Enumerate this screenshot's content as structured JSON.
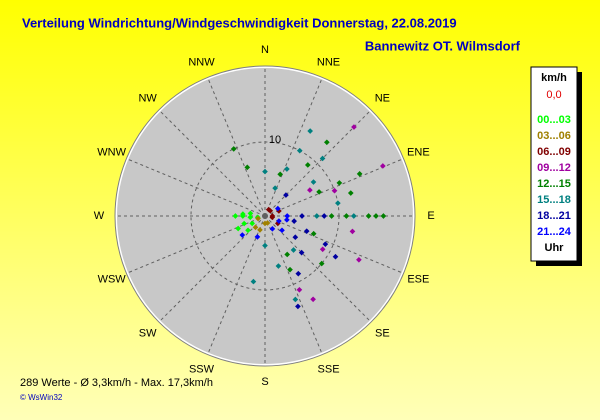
{
  "chart_data": {
    "type": "polar-scatter",
    "title": "Verteilung Windrichtung/Windgeschwindigkeit  Donnerstag, 22.08.2019",
    "subtitle": "Bannewitz OT. Wilmsdorf",
    "directions": [
      "N",
      "NNE",
      "NE",
      "ENE",
      "E",
      "ESE",
      "SE",
      "SSE",
      "S",
      "SSW",
      "SW",
      "WSW",
      "W",
      "WNW",
      "NW",
      "NNW"
    ],
    "rlim": [
      0,
      20
    ],
    "rticks": [
      10
    ],
    "legend_title": "km/h",
    "legend_calm": "0,0",
    "legend_unit": "Uhr",
    "series": [
      {
        "name": "00...03",
        "color": "#00ff00",
        "direction": [
          270,
          270,
          265,
          275,
          250,
          240,
          245,
          280,
          260,
          230
        ],
        "speed": [
          3,
          4,
          2,
          3,
          3,
          2,
          4,
          2,
          1,
          3
        ]
      },
      {
        "name": "03...06",
        "color": "#a08000",
        "direction": [
          250,
          200,
          180,
          220,
          160
        ],
        "speed": [
          1,
          2,
          1,
          2,
          1
        ]
      },
      {
        "name": "06...09",
        "color": "#800000",
        "direction": [
          100,
          120,
          90,
          70,
          45,
          30
        ],
        "speed": [
          1,
          2,
          1,
          2,
          1,
          1
        ]
      },
      {
        "name": "09...12",
        "color": "#a000a0",
        "direction": [
          45,
          67,
          115,
          70,
          100,
          60,
          120,
          150,
          155
        ],
        "speed": [
          17,
          17.3,
          14,
          10,
          12,
          7,
          9,
          13,
          11
        ]
      },
      {
        "name": "12...15",
        "color": "#008000",
        "direction": [
          90,
          90,
          90,
          90,
          90,
          66,
          66,
          66,
          75,
          40,
          40,
          335,
          340,
          155,
          150,
          110,
          130,
          20
        ],
        "speed": [
          14,
          15,
          16,
          11,
          9,
          14,
          11,
          8,
          12,
          13,
          9,
          10,
          7,
          8,
          6,
          7,
          10,
          6
        ]
      },
      {
        "name": "15...18",
        "color": "#008080",
        "direction": [
          90,
          90,
          28,
          28,
          25,
          20,
          45,
          55,
          80,
          160,
          165,
          140,
          190,
          180,
          0
        ],
        "speed": [
          12,
          7,
          13,
          10,
          7,
          4,
          11,
          8,
          10,
          12,
          7,
          6,
          9,
          4,
          6
        ]
      },
      {
        "name": "18...21",
        "color": "#0000a0",
        "direction": [
          90,
          90,
          110,
          115,
          125,
          120,
          160,
          150,
          135,
          100,
          45
        ],
        "speed": [
          5,
          8,
          6,
          9,
          5,
          11,
          13,
          9,
          7,
          4,
          4
        ]
      },
      {
        "name": "21...24",
        "color": "#0000ff",
        "direction": [
          100,
          110,
          130,
          150,
          90,
          200,
          230,
          60
        ],
        "speed": [
          3,
          2,
          3,
          2,
          3,
          3,
          4,
          2
        ]
      }
    ],
    "footer": "289 Werte   -   Ø 3,3km/h  -  Max. 17,3km/h",
    "copyright": "© WsWin32"
  }
}
